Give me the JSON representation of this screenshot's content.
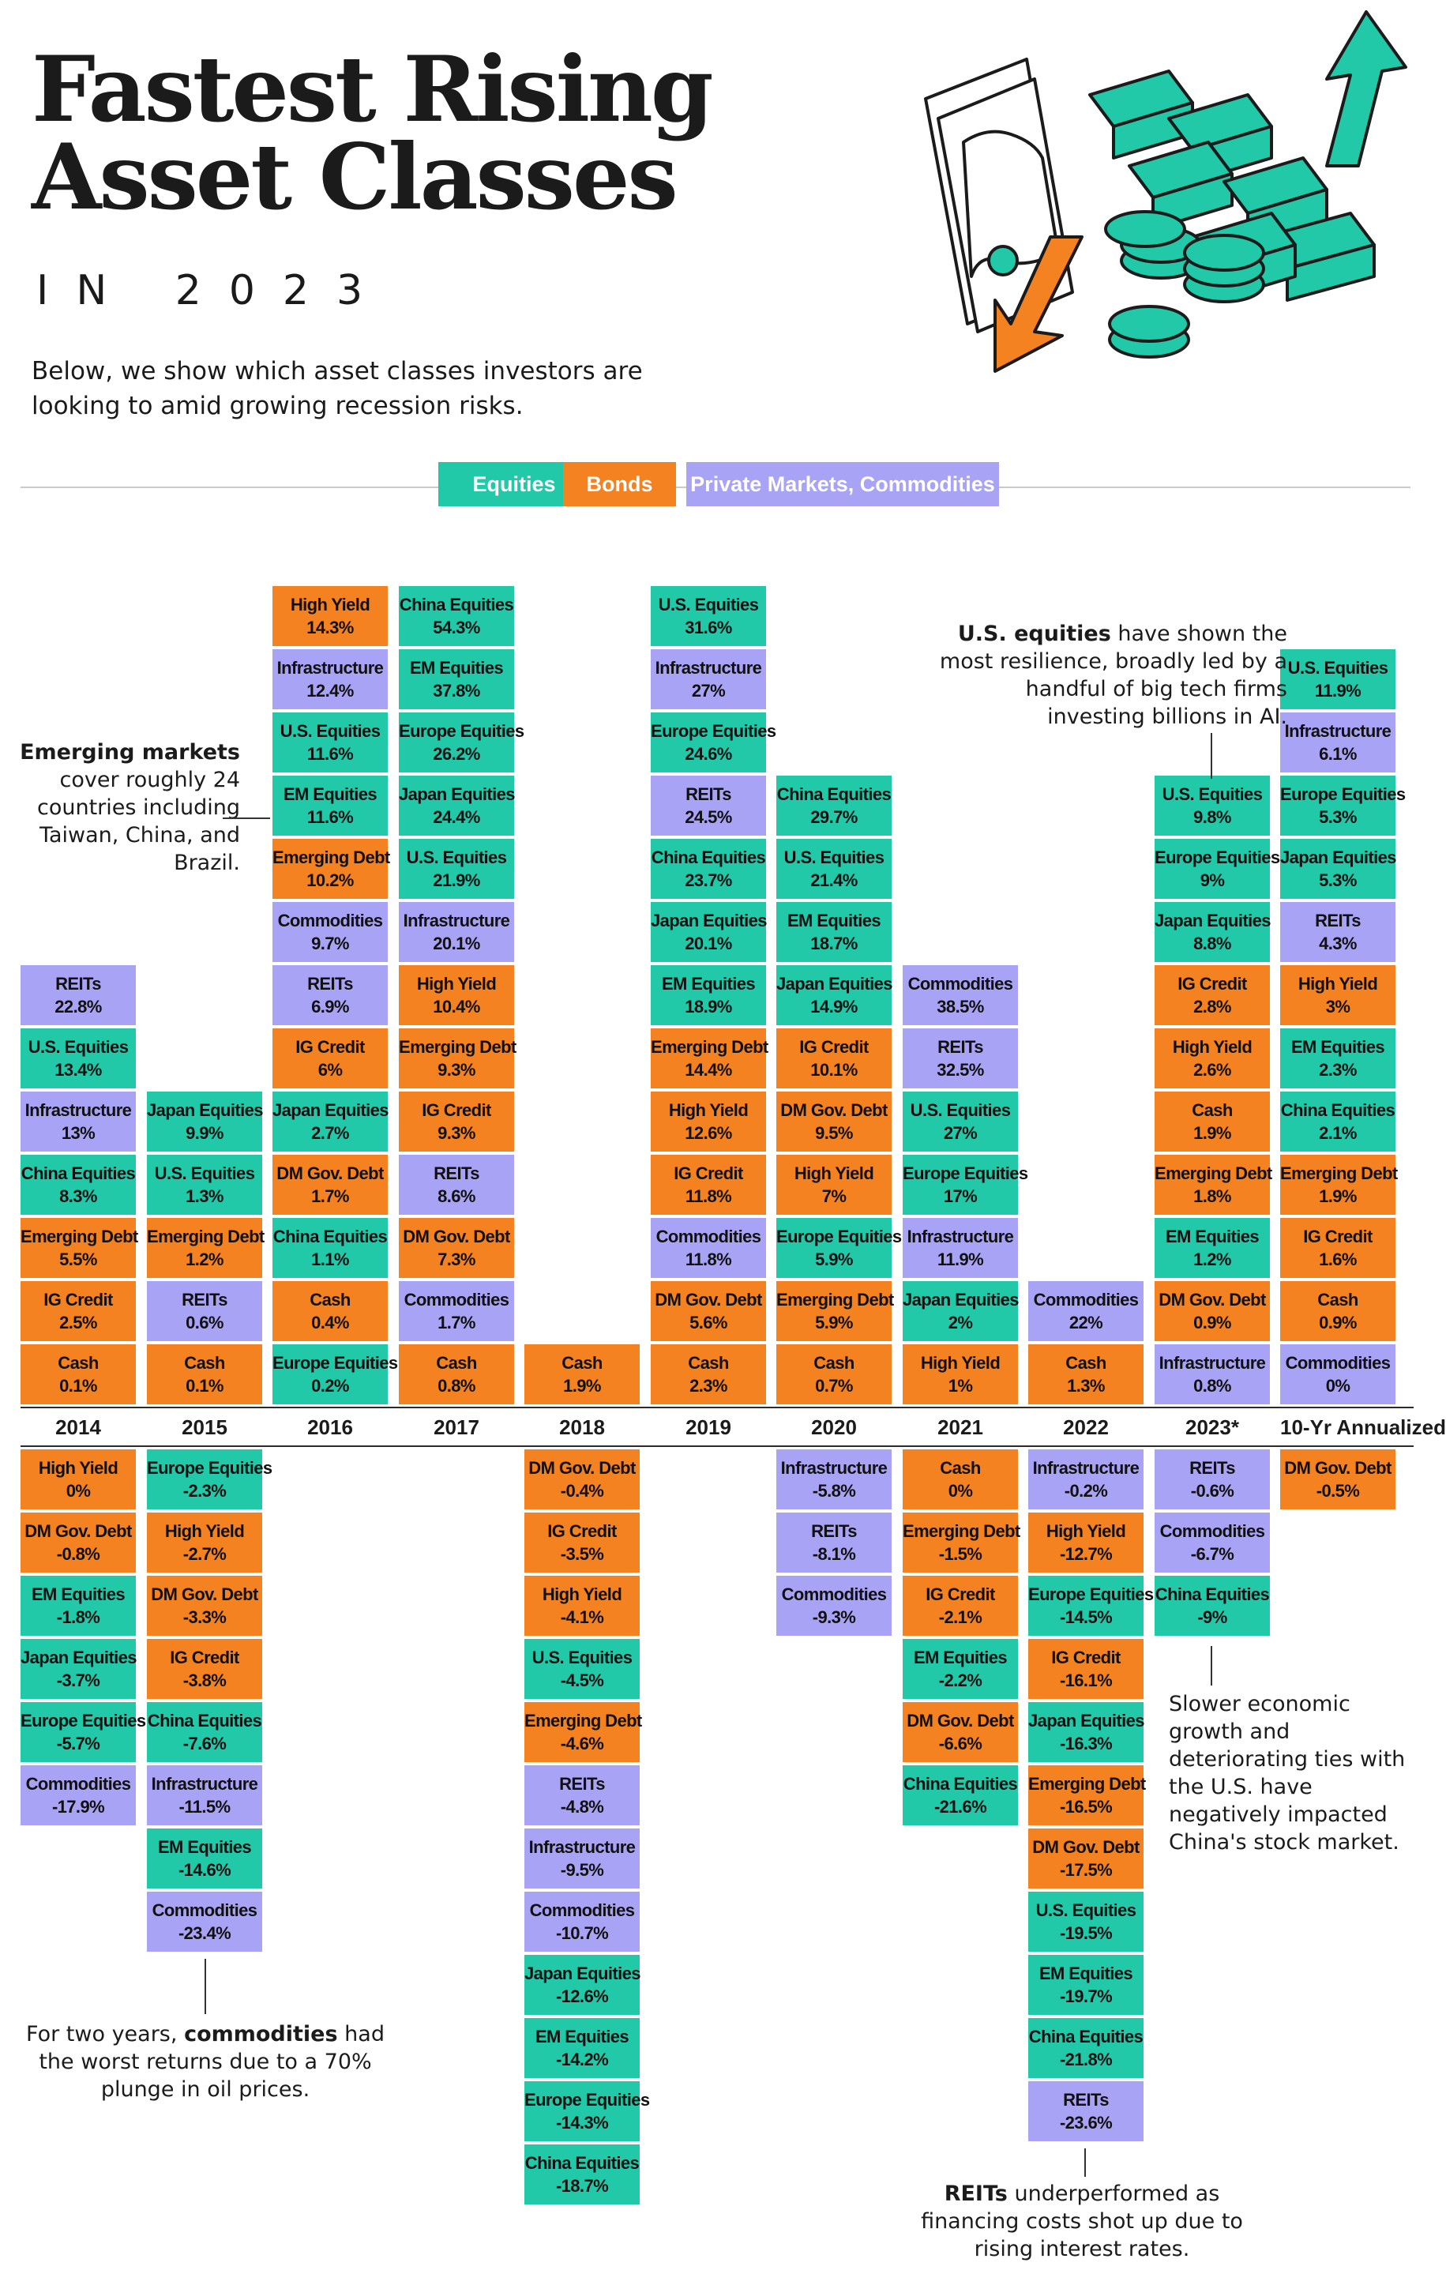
{
  "header": {
    "title_line1": "Fastest Rising",
    "title_line2": "Asset Classes",
    "subtitle": "IN 2023",
    "intro": "Below, we show which asset classes investors are looking to amid growing recession risks."
  },
  "legend": {
    "equities": "Equities",
    "bonds": "Bonds",
    "private": "Private Markets, Commodities"
  },
  "colors": {
    "equities": "#22c9a8",
    "bonds": "#f58220",
    "private": "#a8a3f5"
  },
  "annotations": {
    "em_bold": "Emerging markets",
    "em_rest": "cover roughly 24 countries including Taiwan, China, and Brazil.",
    "us_bold": "U.S. equities",
    "us_rest": "have shown the most resilience, broadly led by a handful of big tech firms investing billions in AI.",
    "china": "Slower economic growth and deteriorating ties with the U.S. have negatively impacted China's stock market.",
    "comm_pre": "For two years,",
    "comm_bold": "commodities",
    "comm_rest": "had the worst returns due to a 70% plunge in oil prices.",
    "reits_bold": "REITs",
    "reits_rest": "underperformed as financing costs shot up due to rising interest rates."
  },
  "chart_data": {
    "type": "table",
    "columns": [
      {
        "label": "2014",
        "positive": [
          [
            "REITs",
            "22.8%",
            "p"
          ],
          [
            "U.S. Equities",
            "13.4%",
            "e"
          ],
          [
            "Infrastructure",
            "13%",
            "p"
          ],
          [
            "China Equities",
            "8.3%",
            "e"
          ],
          [
            "Emerging Debt",
            "5.5%",
            "b"
          ],
          [
            "IG Credit",
            "2.5%",
            "b"
          ],
          [
            "Cash",
            "0.1%",
            "b"
          ]
        ],
        "negative": [
          [
            "High Yield",
            "0%",
            "b"
          ],
          [
            "DM Gov. Debt",
            "-0.8%",
            "b"
          ],
          [
            "EM Equities",
            "-1.8%",
            "e"
          ],
          [
            "Japan Equities",
            "-3.7%",
            "e"
          ],
          [
            "Europe Equities",
            "-5.7%",
            "e"
          ],
          [
            "Commodities",
            "-17.9%",
            "p"
          ]
        ]
      },
      {
        "label": "2015",
        "positive": [
          [
            "Japan Equities",
            "9.9%",
            "e"
          ],
          [
            "U.S. Equities",
            "1.3%",
            "e"
          ],
          [
            "Emerging Debt",
            "1.2%",
            "b"
          ],
          [
            "REITs",
            "0.6%",
            "p"
          ],
          [
            "Cash",
            "0.1%",
            "b"
          ]
        ],
        "negative": [
          [
            "Europe Equities",
            "-2.3%",
            "e"
          ],
          [
            "High Yield",
            "-2.7%",
            "b"
          ],
          [
            "DM Gov. Debt",
            "-3.3%",
            "b"
          ],
          [
            "IG Credit",
            "-3.8%",
            "b"
          ],
          [
            "China Equities",
            "-7.6%",
            "e"
          ],
          [
            "Infrastructure",
            "-11.5%",
            "p"
          ],
          [
            "EM Equities",
            "-14.6%",
            "e"
          ],
          [
            "Commodities",
            "-23.4%",
            "p"
          ]
        ]
      },
      {
        "label": "2016",
        "positive": [
          [
            "High Yield",
            "14.3%",
            "b"
          ],
          [
            "Infrastructure",
            "12.4%",
            "p"
          ],
          [
            "U.S. Equities",
            "11.6%",
            "e"
          ],
          [
            "EM Equities",
            "11.6%",
            "e"
          ],
          [
            "Emerging Debt",
            "10.2%",
            "b"
          ],
          [
            "Commodities",
            "9.7%",
            "p"
          ],
          [
            "REITs",
            "6.9%",
            "p"
          ],
          [
            "IG Credit",
            "6%",
            "b"
          ],
          [
            "Japan Equities",
            "2.7%",
            "e"
          ],
          [
            "DM Gov. Debt",
            "1.7%",
            "b"
          ],
          [
            "China Equities",
            "1.1%",
            "e"
          ],
          [
            "Cash",
            "0.4%",
            "b"
          ],
          [
            "Europe Equities",
            "0.2%",
            "e"
          ]
        ],
        "negative": []
      },
      {
        "label": "2017",
        "positive": [
          [
            "China Equities",
            "54.3%",
            "e"
          ],
          [
            "EM Equities",
            "37.8%",
            "e"
          ],
          [
            "Europe Equities",
            "26.2%",
            "e"
          ],
          [
            "Japan Equities",
            "24.4%",
            "e"
          ],
          [
            "U.S. Equities",
            "21.9%",
            "e"
          ],
          [
            "Infrastructure",
            "20.1%",
            "p"
          ],
          [
            "High Yield",
            "10.4%",
            "b"
          ],
          [
            "Emerging Debt",
            "9.3%",
            "b"
          ],
          [
            "IG Credit",
            "9.3%",
            "b"
          ],
          [
            "REITs",
            "8.6%",
            "p"
          ],
          [
            "DM Gov. Debt",
            "7.3%",
            "b"
          ],
          [
            "Commodities",
            "1.7%",
            "p"
          ],
          [
            "Cash",
            "0.8%",
            "b"
          ]
        ],
        "negative": []
      },
      {
        "label": "2018",
        "positive": [
          [
            "Cash",
            "1.9%",
            "b"
          ]
        ],
        "negative": [
          [
            "DM Gov. Debt",
            "-0.4%",
            "b"
          ],
          [
            "IG Credit",
            "-3.5%",
            "b"
          ],
          [
            "High Yield",
            "-4.1%",
            "b"
          ],
          [
            "U.S. Equities",
            "-4.5%",
            "e"
          ],
          [
            "Emerging Debt",
            "-4.6%",
            "b"
          ],
          [
            "REITs",
            "-4.8%",
            "p"
          ],
          [
            "Infrastructure",
            "-9.5%",
            "p"
          ],
          [
            "Commodities",
            "-10.7%",
            "p"
          ],
          [
            "Japan Equities",
            "-12.6%",
            "e"
          ],
          [
            "EM Equities",
            "-14.2%",
            "e"
          ],
          [
            "Europe Equities",
            "-14.3%",
            "e"
          ],
          [
            "China Equities",
            "-18.7%",
            "e"
          ]
        ]
      },
      {
        "label": "2019",
        "positive": [
          [
            "U.S. Equities",
            "31.6%",
            "e"
          ],
          [
            "Infrastructure",
            "27%",
            "p"
          ],
          [
            "Europe Equities",
            "24.6%",
            "e"
          ],
          [
            "REITs",
            "24.5%",
            "p"
          ],
          [
            "China Equities",
            "23.7%",
            "e"
          ],
          [
            "Japan Equities",
            "20.1%",
            "e"
          ],
          [
            "EM Equities",
            "18.9%",
            "e"
          ],
          [
            "Emerging Debt",
            "14.4%",
            "b"
          ],
          [
            "High Yield",
            "12.6%",
            "b"
          ],
          [
            "IG Credit",
            "11.8%",
            "b"
          ],
          [
            "Commodities",
            "11.8%",
            "p"
          ],
          [
            "DM Gov. Debt",
            "5.6%",
            "b"
          ],
          [
            "Cash",
            "2.3%",
            "b"
          ]
        ],
        "negative": []
      },
      {
        "label": "2020",
        "positive": [
          [
            "China Equities",
            "29.7%",
            "e"
          ],
          [
            "U.S. Equities",
            "21.4%",
            "e"
          ],
          [
            "EM Equities",
            "18.7%",
            "e"
          ],
          [
            "Japan Equities",
            "14.9%",
            "e"
          ],
          [
            "IG Credit",
            "10.1%",
            "b"
          ],
          [
            "DM Gov. Debt",
            "9.5%",
            "b"
          ],
          [
            "High Yield",
            "7%",
            "b"
          ],
          [
            "Europe Equities",
            "5.9%",
            "e"
          ],
          [
            "Emerging Debt",
            "5.9%",
            "b"
          ],
          [
            "Cash",
            "0.7%",
            "b"
          ]
        ],
        "negative": [
          [
            "Infrastructure",
            "-5.8%",
            "p"
          ],
          [
            "REITs",
            "-8.1%",
            "p"
          ],
          [
            "Commodities",
            "-9.3%",
            "p"
          ]
        ]
      },
      {
        "label": "2021",
        "positive": [
          [
            "Commodities",
            "38.5%",
            "p"
          ],
          [
            "REITs",
            "32.5%",
            "p"
          ],
          [
            "U.S. Equities",
            "27%",
            "e"
          ],
          [
            "Europe Equities",
            "17%",
            "e"
          ],
          [
            "Infrastructure",
            "11.9%",
            "p"
          ],
          [
            "Japan Equities",
            "2%",
            "e"
          ],
          [
            "High Yield",
            "1%",
            "b"
          ]
        ],
        "negative": [
          [
            "Cash",
            "0%",
            "b"
          ],
          [
            "Emerging Debt",
            "-1.5%",
            "b"
          ],
          [
            "IG Credit",
            "-2.1%",
            "b"
          ],
          [
            "EM Equities",
            "-2.2%",
            "e"
          ],
          [
            "DM Gov. Debt",
            "-6.6%",
            "b"
          ],
          [
            "China Equities",
            "-21.6%",
            "e"
          ]
        ]
      },
      {
        "label": "2022",
        "positive": [
          [
            "Commodities",
            "22%",
            "p"
          ],
          [
            "Cash",
            "1.3%",
            "b"
          ]
        ],
        "negative": [
          [
            "Infrastructure",
            "-0.2%",
            "p"
          ],
          [
            "High Yield",
            "-12.7%",
            "b"
          ],
          [
            "Europe Equities",
            "-14.5%",
            "e"
          ],
          [
            "IG Credit",
            "-16.1%",
            "b"
          ],
          [
            "Japan Equities",
            "-16.3%",
            "e"
          ],
          [
            "Emerging Debt",
            "-16.5%",
            "b"
          ],
          [
            "DM Gov. Debt",
            "-17.5%",
            "b"
          ],
          [
            "U.S. Equities",
            "-19.5%",
            "e"
          ],
          [
            "EM Equities",
            "-19.7%",
            "e"
          ],
          [
            "China Equities",
            "-21.8%",
            "e"
          ],
          [
            "REITs",
            "-23.6%",
            "p"
          ]
        ]
      },
      {
        "label": "2023*",
        "positive": [
          [
            "U.S. Equities",
            "9.8%",
            "e"
          ],
          [
            "Europe Equities",
            "9%",
            "e"
          ],
          [
            "Japan Equities",
            "8.8%",
            "e"
          ],
          [
            "IG Credit",
            "2.8%",
            "b"
          ],
          [
            "High Yield",
            "2.6%",
            "b"
          ],
          [
            "Cash",
            "1.9%",
            "b"
          ],
          [
            "Emerging Debt",
            "1.8%",
            "b"
          ],
          [
            "EM Equities",
            "1.2%",
            "e"
          ],
          [
            "DM Gov. Debt",
            "0.9%",
            "b"
          ],
          [
            "Infrastructure",
            "0.8%",
            "p"
          ]
        ],
        "negative": [
          [
            "REITs",
            "-0.6%",
            "p"
          ],
          [
            "Commodities",
            "-6.7%",
            "p"
          ],
          [
            "China Equities",
            "-9%",
            "e"
          ]
        ]
      },
      {
        "label": "10-Yr Annualized",
        "positive": [
          [
            "U.S. Equities",
            "11.9%",
            "e"
          ],
          [
            "Infrastructure",
            "6.1%",
            "p"
          ],
          [
            "Europe Equities",
            "5.3%",
            "e"
          ],
          [
            "Japan Equities",
            "5.3%",
            "e"
          ],
          [
            "REITs",
            "4.3%",
            "p"
          ],
          [
            "High Yield",
            "3%",
            "b"
          ],
          [
            "EM Equities",
            "2.3%",
            "e"
          ],
          [
            "China Equities",
            "2.1%",
            "e"
          ],
          [
            "Emerging Debt",
            "1.9%",
            "b"
          ],
          [
            "IG Credit",
            "1.6%",
            "b"
          ],
          [
            "Cash",
            "0.9%",
            "b"
          ],
          [
            "Commodities",
            "0%",
            "p"
          ]
        ],
        "negative": [
          [
            "DM Gov. Debt",
            "-0.5%",
            "b"
          ]
        ]
      }
    ]
  }
}
